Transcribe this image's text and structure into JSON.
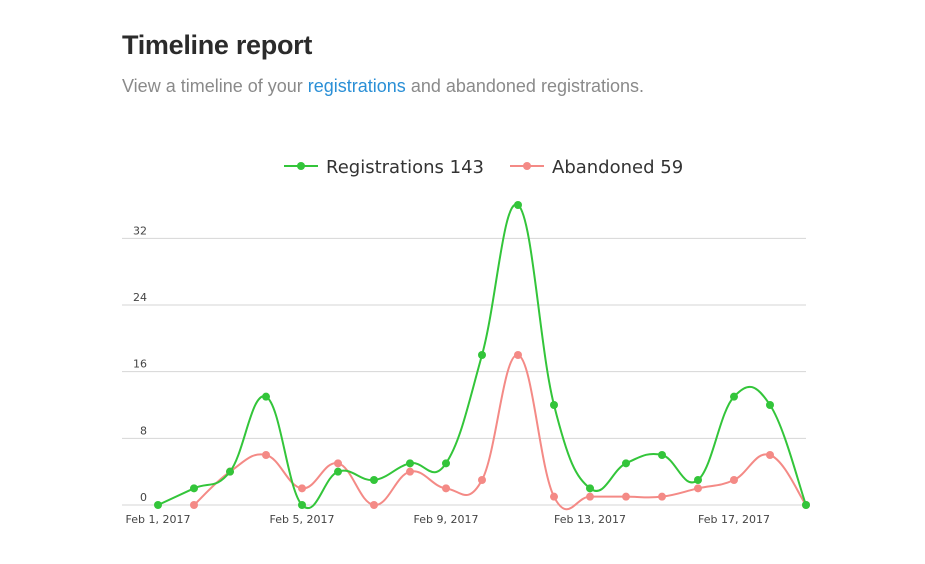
{
  "header": {
    "title": "Timeline report",
    "subtitle_prefix": "View a timeline of your ",
    "subtitle_link": "registrations",
    "subtitle_suffix": " and abandoned registrations."
  },
  "colors": {
    "registrations": "#33c53a",
    "abandoned": "#f48a86",
    "grid": "#d6d6d6"
  },
  "chart_data": {
    "type": "line",
    "x": [
      "2017-02-01",
      "2017-02-02",
      "2017-02-03",
      "2017-02-04",
      "2017-02-05",
      "2017-02-06",
      "2017-02-07",
      "2017-02-08",
      "2017-02-09",
      "2017-02-10",
      "2017-02-11",
      "2017-02-12",
      "2017-02-13",
      "2017-02-14",
      "2017-02-15",
      "2017-02-16",
      "2017-02-17",
      "2017-02-18",
      "2017-02-19"
    ],
    "x_tick_labels": [
      "Feb 1, 2017",
      "Feb 5, 2017",
      "Feb 9, 2017",
      "Feb 13, 2017",
      "Feb 17, 2017"
    ],
    "y_ticks": [
      0,
      8,
      16,
      24,
      32
    ],
    "ylim": [
      0,
      36
    ],
    "grid": true,
    "legend_position": "top-center",
    "series": [
      {
        "name": "Registrations",
        "total": "143",
        "values": [
          0,
          2,
          4,
          13,
          0,
          4,
          3,
          5,
          5,
          18,
          36,
          12,
          2,
          5,
          6,
          3,
          13,
          12,
          0
        ]
      },
      {
        "name": "Abandoned",
        "total": "59",
        "values": [
          null,
          0,
          4,
          6,
          2,
          5,
          0,
          4,
          2,
          3,
          18,
          1,
          1,
          1,
          1,
          2,
          3,
          6,
          0
        ]
      }
    ]
  }
}
